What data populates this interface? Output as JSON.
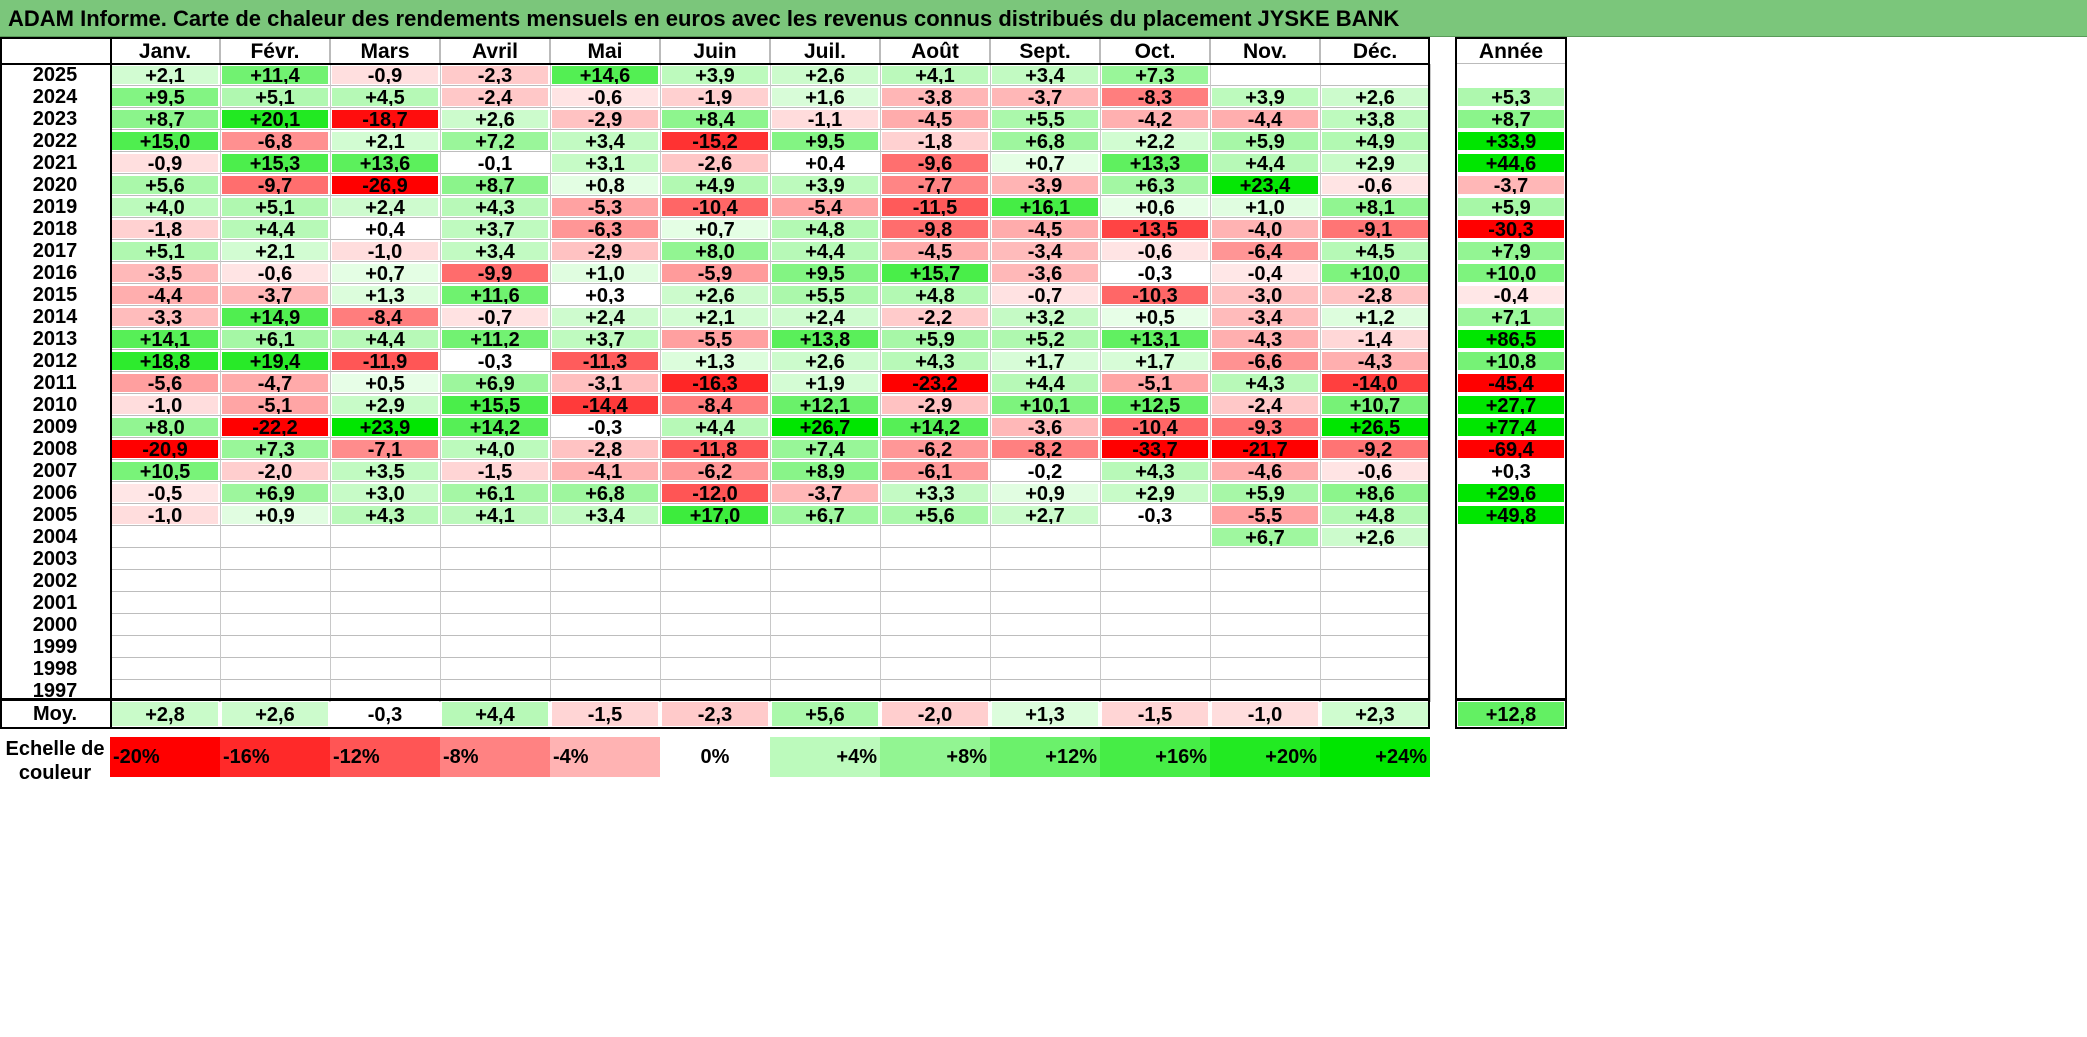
{
  "title": "ADAM Informe. Carte de chaleur des rendements mensuels en euros avec les revenus connus distribués du placement JYSKE BANK",
  "chart_data": {
    "type": "heatmap",
    "title": "ADAM Informe. Carte de chaleur des rendements mensuels en euros avec les revenus connus distribués du placement JYSKE BANK",
    "columns": [
      "Janv.",
      "Févr.",
      "Mars",
      "Avril",
      "Mai",
      "Juin",
      "Juil.",
      "Août",
      "Sept.",
      "Oct.",
      "Nov.",
      "Déc."
    ],
    "year_header": "Année",
    "rows": [
      {
        "year": "2025",
        "values": [
          "+2,1",
          "+11,4",
          "-0,9",
          "-2,3",
          "+14,6",
          "+3,9",
          "+2,6",
          "+4,1",
          "+3,4",
          "+7,3",
          "",
          ""
        ],
        "annual": ""
      },
      {
        "year": "2024",
        "values": [
          "+9,5",
          "+5,1",
          "+4,5",
          "-2,4",
          "-0,6",
          "-1,9",
          "+1,6",
          "-3,8",
          "-3,7",
          "-8,3",
          "+3,9",
          "+2,6"
        ],
        "annual": "+5,3"
      },
      {
        "year": "2023",
        "values": [
          "+8,7",
          "+20,1",
          "-18,7",
          "+2,6",
          "-2,9",
          "+8,4",
          "-1,1",
          "-4,5",
          "+5,5",
          "-4,2",
          "-4,4",
          "+3,8"
        ],
        "annual": "+8,7"
      },
      {
        "year": "2022",
        "values": [
          "+15,0",
          "-6,8",
          "+2,1",
          "+7,2",
          "+3,4",
          "-15,2",
          "+9,5",
          "-1,8",
          "+6,8",
          "+2,2",
          "+5,9",
          "+4,9"
        ],
        "annual": "+33,9"
      },
      {
        "year": "2021",
        "values": [
          "-0,9",
          "+15,3",
          "+13,6",
          "-0,1",
          "+3,1",
          "-2,6",
          "+0,4",
          "-9,6",
          "+0,7",
          "+13,3",
          "+4,4",
          "+2,9"
        ],
        "annual": "+44,6"
      },
      {
        "year": "2020",
        "values": [
          "+5,6",
          "-9,7",
          "-26,9",
          "+8,7",
          "+0,8",
          "+4,9",
          "+3,9",
          "-7,7",
          "-3,9",
          "+6,3",
          "+23,4",
          "-0,6"
        ],
        "annual": "-3,7"
      },
      {
        "year": "2019",
        "values": [
          "+4,0",
          "+5,1",
          "+2,4",
          "+4,3",
          "-5,3",
          "-10,4",
          "-5,4",
          "-11,5",
          "+16,1",
          "+0,6",
          "+1,0",
          "+8,1"
        ],
        "annual": "+5,9"
      },
      {
        "year": "2018",
        "values": [
          "-1,8",
          "+4,4",
          "+0,4",
          "+3,7",
          "-6,3",
          "+0,7",
          "+4,8",
          "-9,8",
          "-4,5",
          "-13,5",
          "-4,0",
          "-9,1"
        ],
        "annual": "-30,3"
      },
      {
        "year": "2017",
        "values": [
          "+5,1",
          "+2,1",
          "-1,0",
          "+3,4",
          "-2,9",
          "+8,0",
          "+4,4",
          "-4,5",
          "-3,4",
          "-0,6",
          "-6,4",
          "+4,5"
        ],
        "annual": "+7,9"
      },
      {
        "year": "2016",
        "values": [
          "-3,5",
          "-0,6",
          "+0,7",
          "-9,9",
          "+1,0",
          "-5,9",
          "+9,5",
          "+15,7",
          "-3,6",
          "-0,3",
          "-0,4",
          "+10,0"
        ],
        "annual": "+10,0"
      },
      {
        "year": "2015",
        "values": [
          "-4,4",
          "-3,7",
          "+1,3",
          "+11,6",
          "+0,3",
          "+2,6",
          "+5,5",
          "+4,8",
          "-0,7",
          "-10,3",
          "-3,0",
          "-2,8"
        ],
        "annual": "-0,4"
      },
      {
        "year": "2014",
        "values": [
          "-3,3",
          "+14,9",
          "-8,4",
          "-0,7",
          "+2,4",
          "+2,1",
          "+2,4",
          "-2,2",
          "+3,2",
          "+0,5",
          "-3,4",
          "+1,2"
        ],
        "annual": "+7,1"
      },
      {
        "year": "2013",
        "values": [
          "+14,1",
          "+6,1",
          "+4,4",
          "+11,2",
          "+3,7",
          "-5,5",
          "+13,8",
          "+5,9",
          "+5,2",
          "+13,1",
          "-4,3",
          "-1,4"
        ],
        "annual": "+86,5"
      },
      {
        "year": "2012",
        "values": [
          "+18,8",
          "+19,4",
          "-11,9",
          "-0,3",
          "-11,3",
          "+1,3",
          "+2,6",
          "+4,3",
          "+1,7",
          "+1,7",
          "-6,6",
          "-4,3"
        ],
        "annual": "+10,8"
      },
      {
        "year": "2011",
        "values": [
          "-5,6",
          "-4,7",
          "+0,5",
          "+6,9",
          "-3,1",
          "-16,3",
          "+1,9",
          "-23,2",
          "+4,4",
          "-5,1",
          "+4,3",
          "-14,0"
        ],
        "annual": "-45,4"
      },
      {
        "year": "2010",
        "values": [
          "-1,0",
          "-5,1",
          "+2,9",
          "+15,5",
          "-14,4",
          "-8,4",
          "+12,1",
          "-2,9",
          "+10,1",
          "+12,5",
          "-2,4",
          "+10,7"
        ],
        "annual": "+27,7"
      },
      {
        "year": "2009",
        "values": [
          "+8,0",
          "-22,2",
          "+23,9",
          "+14,2",
          "-0,3",
          "+4,4",
          "+26,7",
          "+14,2",
          "-3,6",
          "-10,4",
          "-9,3",
          "+26,5"
        ],
        "annual": "+77,4"
      },
      {
        "year": "2008",
        "values": [
          "-20,9",
          "+7,3",
          "-7,1",
          "+4,0",
          "-2,8",
          "-11,8",
          "+7,4",
          "-6,2",
          "-8,2",
          "-33,7",
          "-21,7",
          "-9,2"
        ],
        "annual": "-69,4"
      },
      {
        "year": "2007",
        "values": [
          "+10,5",
          "-2,0",
          "+3,5",
          "-1,5",
          "-4,1",
          "-6,2",
          "+8,9",
          "-6,1",
          "-0,2",
          "+4,3",
          "-4,6",
          "-0,6"
        ],
        "annual": "+0,3"
      },
      {
        "year": "2006",
        "values": [
          "-0,5",
          "+6,9",
          "+3,0",
          "+6,1",
          "+6,8",
          "-12,0",
          "-3,7",
          "+3,3",
          "+0,9",
          "+2,9",
          "+5,9",
          "+8,6"
        ],
        "annual": "+29,6"
      },
      {
        "year": "2005",
        "values": [
          "-1,0",
          "+0,9",
          "+4,3",
          "+4,1",
          "+3,4",
          "+17,0",
          "+6,7",
          "+5,6",
          "+2,7",
          "-0,3",
          "-5,5",
          "+4,8"
        ],
        "annual": "+49,8"
      },
      {
        "year": "2004",
        "values": [
          "",
          "",
          "",
          "",
          "",
          "",
          "",
          "",
          "",
          "",
          "+6,7",
          "+2,6"
        ],
        "annual": ""
      },
      {
        "year": "2003",
        "values": [
          "",
          "",
          "",
          "",
          "",
          "",
          "",
          "",
          "",
          "",
          "",
          ""
        ],
        "annual": ""
      },
      {
        "year": "2002",
        "values": [
          "",
          "",
          "",
          "",
          "",
          "",
          "",
          "",
          "",
          "",
          "",
          ""
        ],
        "annual": ""
      },
      {
        "year": "2001",
        "values": [
          "",
          "",
          "",
          "",
          "",
          "",
          "",
          "",
          "",
          "",
          "",
          ""
        ],
        "annual": ""
      },
      {
        "year": "2000",
        "values": [
          "",
          "",
          "",
          "",
          "",
          "",
          "",
          "",
          "",
          "",
          "",
          ""
        ],
        "annual": ""
      },
      {
        "year": "1999",
        "values": [
          "",
          "",
          "",
          "",
          "",
          "",
          "",
          "",
          "",
          "",
          "",
          ""
        ],
        "annual": ""
      },
      {
        "year": "1998",
        "values": [
          "",
          "",
          "",
          "",
          "",
          "",
          "",
          "",
          "",
          "",
          "",
          ""
        ],
        "annual": ""
      },
      {
        "year": "1997",
        "values": [
          "",
          "",
          "",
          "",
          "",
          "",
          "",
          "",
          "",
          "",
          "",
          ""
        ],
        "annual": ""
      }
    ],
    "average": {
      "label": "Moy.",
      "values": [
        "+2,8",
        "+2,6",
        "-0,3",
        "+4,4",
        "-1,5",
        "-2,3",
        "+5,6",
        "-2,0",
        "+1,3",
        "-1,5",
        "-1,0",
        "+2,3"
      ],
      "annual": "+12,8"
    },
    "color_scale": {
      "label": "Echelle de couleur",
      "stops": [
        "-20%",
        "-16%",
        "-12%",
        "-8%",
        "-4%",
        "0%",
        "+4%",
        "+8%",
        "+12%",
        "+16%",
        "+20%",
        "+24%"
      ],
      "stop_values": [
        -20,
        -16,
        -12,
        -8,
        -4,
        0,
        4,
        8,
        12,
        16,
        20,
        24
      ],
      "negative_color": "#ff0000",
      "positive_color": "#00e600",
      "neutral_color": "#ffffff"
    }
  }
}
